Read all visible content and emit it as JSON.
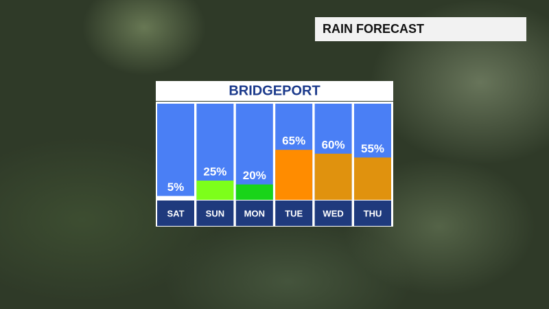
{
  "header": {
    "title": "RAIN FORECAST"
  },
  "chart_data": {
    "type": "bar",
    "title": "BRIDGEPORT",
    "categories": [
      "SAT",
      "SUN",
      "MON",
      "TUE",
      "WED",
      "THU"
    ],
    "values": [
      5,
      25,
      20,
      65,
      60,
      55
    ],
    "value_labels": [
      "5%",
      "25%",
      "20%",
      "65%",
      "60%",
      "55%"
    ],
    "colors": [
      "#ffffff",
      "#7dff1a",
      "#19d419",
      "#ff8c00",
      "#e0920e",
      "#e0920e"
    ]
  }
}
